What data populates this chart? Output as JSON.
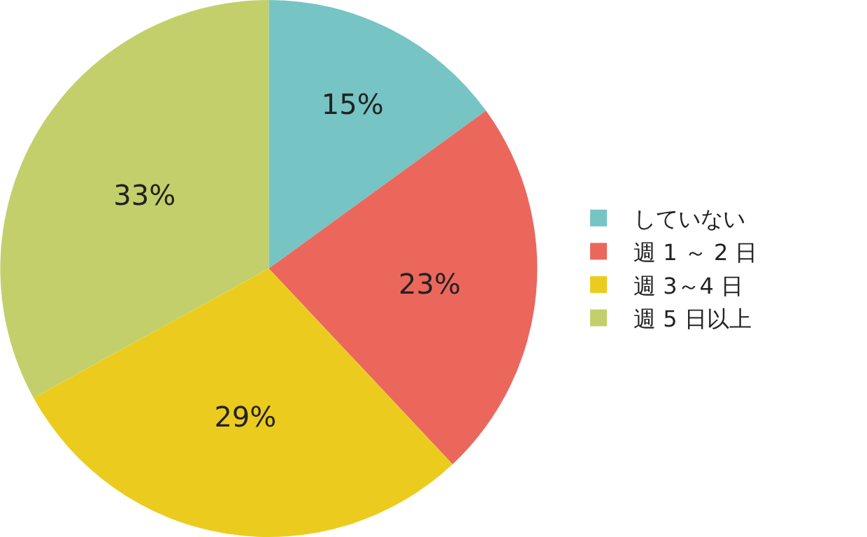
{
  "chart_data": {
    "type": "pie",
    "categories": [
      "していない",
      "週 1 ～ 2 日",
      "週 3～4 日",
      "週 5 日以上"
    ],
    "values": [
      15,
      23,
      29,
      33
    ],
    "colors": [
      "#76c4c4",
      "#eb675c",
      "#ebcc1e",
      "#c3cf6a"
    ],
    "value_labels": [
      "15%",
      "23%",
      "29%",
      "33%"
    ],
    "legend": "right"
  }
}
